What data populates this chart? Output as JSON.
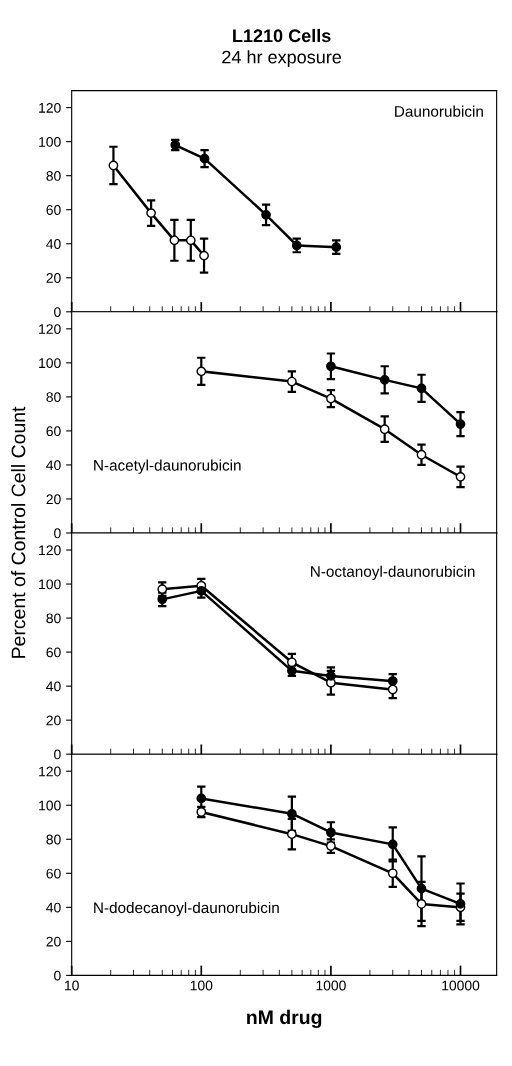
{
  "chart_data": [
    {
      "type": "line",
      "title": "L1210 Cells",
      "subtitle": "24 hr exposure",
      "log": "x",
      "xlim": [
        10,
        19000
      ],
      "xticks": [
        10,
        100,
        1000,
        10000
      ],
      "ylim": [
        0,
        130
      ],
      "yticks": [
        0,
        20,
        40,
        60,
        80,
        100,
        120
      ],
      "tick_labels": "y",
      "marker": "circle",
      "line_style": "solid",
      "annotations": [
        "Daunorubicin"
      ],
      "series": [
        {
          "color": "#000000",
          "x": [
            21,
            41,
            62,
            83,
            105
          ],
          "values": [
            86,
            58,
            42,
            42,
            33
          ],
          "errors": [
            11,
            7.5,
            12,
            12,
            10
          ]
        },
        {
          "color": "#000000",
          "x": [
            63,
            106,
            316,
            545,
            1100
          ],
          "values": [
            98,
            90,
            57,
            39,
            38
          ],
          "errors": [
            3,
            5,
            6,
            4,
            4
          ]
        }
      ]
    },
    {
      "type": "line",
      "ylabel": "Percent of Control Cell Count",
      "log": "x",
      "xlim": [
        10,
        19000
      ],
      "xticks": [
        10,
        100,
        1000,
        10000
      ],
      "ylim": [
        0,
        130
      ],
      "yticks": [
        0,
        20,
        40,
        60,
        80,
        100,
        120
      ],
      "tick_labels": "y",
      "marker": "circle",
      "line_style": "solid",
      "annotations": [
        "N-acetyl-daunorubicin"
      ],
      "series": [
        {
          "color": "#000000",
          "x": [
            100,
            500,
            1000,
            2600,
            5000,
            10000
          ],
          "values": [
            95,
            89,
            79,
            61,
            46,
            33
          ],
          "errors": [
            8,
            6,
            5,
            7.5,
            6,
            6
          ]
        },
        {
          "color": "#000000",
          "x": [
            1000,
            2600,
            5000,
            10000
          ],
          "values": [
            98,
            90,
            85,
            64
          ],
          "errors": [
            7.5,
            8,
            8,
            7
          ]
        }
      ]
    },
    {
      "type": "line",
      "log": "x",
      "xlim": [
        10,
        19000
      ],
      "xticks": [
        10,
        100,
        1000,
        10000
      ],
      "ylim": [
        0,
        130
      ],
      "yticks": [
        0,
        20,
        40,
        60,
        80,
        100,
        120
      ],
      "tick_labels": "y",
      "marker": "circle",
      "line_style": "solid",
      "annotations": [
        "N-octanoyl-daunorubicin"
      ],
      "series": [
        {
          "color": "#000000",
          "x": [
            50,
            100,
            500,
            1000,
            3000
          ],
          "values": [
            97,
            99,
            54,
            42,
            38
          ],
          "errors": [
            4,
            4,
            5,
            7,
            5
          ]
        },
        {
          "color": "#000000",
          "x": [
            50,
            100,
            500,
            1000,
            3000
          ],
          "values": [
            91,
            96,
            49,
            46,
            43
          ],
          "errors": [
            4,
            4,
            3,
            5,
            4
          ]
        }
      ]
    },
    {
      "type": "line",
      "xlabel": "nM drug",
      "log": "x",
      "xlim": [
        10,
        19000
      ],
      "xticks": [
        10,
        100,
        1000,
        10000
      ],
      "ylim": [
        0,
        130
      ],
      "yticks": [
        0,
        20,
        40,
        60,
        80,
        100,
        120
      ],
      "marker": "circle",
      "line_style": "solid",
      "annotations": [
        "N-dodecanoyl-daunorubicin"
      ],
      "series": [
        {
          "color": "#000000",
          "x": [
            100,
            500,
            1000,
            3000,
            5000,
            10000
          ],
          "values": [
            96,
            83,
            76,
            60,
            42,
            40
          ],
          "errors": [
            3,
            9,
            4,
            8,
            13,
            8
          ]
        },
        {
          "color": "#000000",
          "x": [
            100,
            500,
            1000,
            3000,
            5000,
            10000
          ],
          "values": [
            104,
            95,
            84,
            77,
            51,
            42
          ],
          "errors": [
            7,
            10,
            6,
            10,
            19,
            12
          ]
        }
      ]
    }
  ]
}
